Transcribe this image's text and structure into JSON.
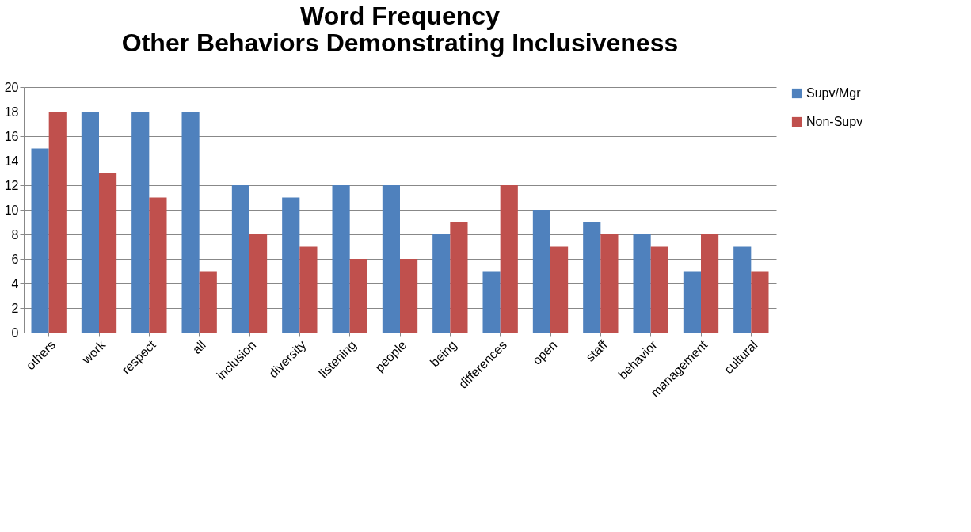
{
  "chart_data": {
    "type": "bar",
    "title": "Word Frequency\nOther Behaviors Demonstrating Inclusiveness",
    "categories": [
      "others",
      "work",
      "respect",
      "all",
      "inclusion",
      "diversity",
      "listening",
      "people",
      "being",
      "differences",
      "open",
      "staff",
      "behavior",
      "management",
      "cultural"
    ],
    "series": [
      {
        "name": "Supv/Mgr",
        "color": "#4f81bd",
        "values": [
          15,
          18,
          18,
          18,
          12,
          11,
          12,
          12,
          8,
          5,
          10,
          9,
          8,
          5,
          7
        ]
      },
      {
        "name": "Non-Supv",
        "color": "#c0504d",
        "values": [
          18,
          13,
          11,
          5,
          8,
          7,
          6,
          6,
          9,
          12,
          7,
          8,
          7,
          8,
          5
        ]
      }
    ],
    "ylim": [
      0,
      20
    ],
    "yticks": [
      0,
      2,
      4,
      6,
      8,
      10,
      12,
      14,
      16,
      18,
      20
    ],
    "grid": "y",
    "legend": "right"
  }
}
